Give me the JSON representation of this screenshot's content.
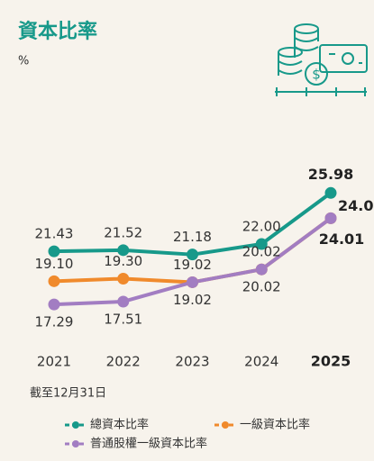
{
  "chart_data": {
    "type": "line",
    "title": "資本比率",
    "subtitle": "%",
    "note": "截至12月31日",
    "categories": [
      "2021",
      "2022",
      "2023",
      "2024",
      "2025"
    ],
    "ylim": [
      14,
      30
    ],
    "series": [
      {
        "name": "總資本比率",
        "color": "#17998a",
        "values": [
          21.43,
          21.52,
          21.18,
          22.0,
          25.98
        ],
        "value_labels": [
          "21.43",
          "21.52",
          "21.18",
          "22.00",
          "25.98"
        ]
      },
      {
        "name": "一級資本比率",
        "color": "#f08a2c",
        "values": [
          19.1,
          19.3,
          19.02,
          20.02,
          24.01
        ],
        "value_labels": [
          "19.10",
          "19.30",
          "19.02",
          "20.02",
          "24.01"
        ]
      },
      {
        "name": "普通股權一級資本比率",
        "color": "#a27dc2",
        "values": [
          17.29,
          17.51,
          19.02,
          20.02,
          24.01
        ],
        "value_labels": [
          "17.29",
          "17.51",
          "19.02",
          "20.02",
          "24.01"
        ]
      }
    ]
  }
}
